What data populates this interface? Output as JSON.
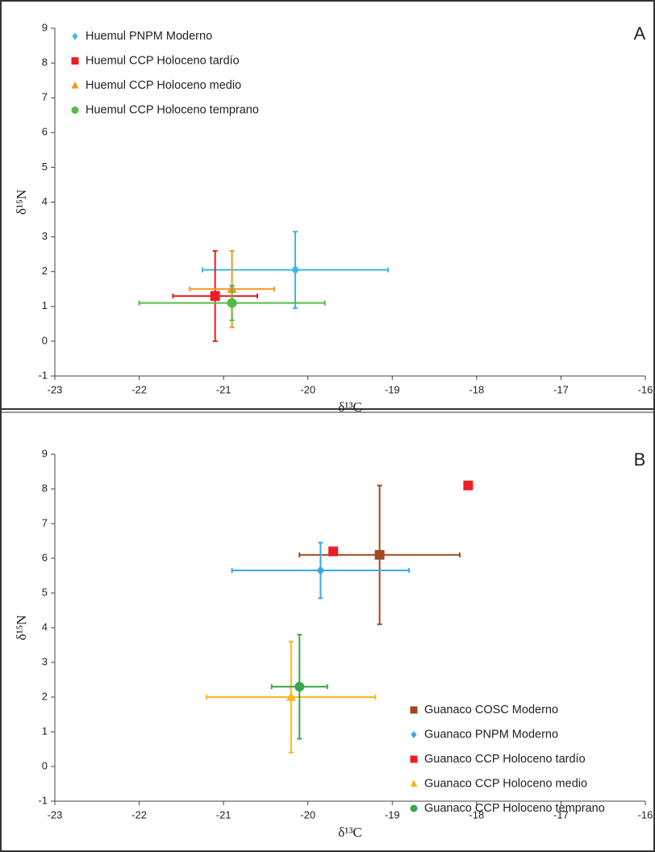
{
  "chart_data": [
    {
      "type": "scatter",
      "panel_label": "A",
      "xlabel": "δ¹³C",
      "ylabel": "δ¹⁵N",
      "xlim": [
        -23,
        -16
      ],
      "xticks": [
        -23,
        -22,
        -21,
        -20,
        -19,
        -18,
        -17,
        -16
      ],
      "ylim": [
        -1,
        9
      ],
      "yticks": [
        -1,
        0,
        1,
        2,
        3,
        4,
        5,
        6,
        7,
        8,
        9
      ],
      "legend": "upper left",
      "series": [
        {
          "name": "Huemul PNPM Moderno",
          "color": "#3cb8e6",
          "marker": "diamond",
          "x": [
            -20.15
          ],
          "values": [
            2.05
          ],
          "xerr": [
            1.1
          ],
          "yerr": [
            1.1
          ]
        },
        {
          "name": "Huemul CCP Holoceno tardío",
          "color": "#ee1c24",
          "marker": "square",
          "x": [
            -21.1
          ],
          "values": [
            1.3
          ],
          "xerr": [
            0.5
          ],
          "yerr": [
            1.3
          ]
        },
        {
          "name": "Huemul CCP Holoceno medio",
          "color": "#f7941d",
          "marker": "triangle",
          "x": [
            -20.9
          ],
          "values": [
            1.5
          ],
          "xerr": [
            0.5
          ],
          "yerr": [
            1.1
          ]
        },
        {
          "name": "Huemul CCP Holoceno temprano",
          "color": "#57b947",
          "marker": "circle",
          "x": [
            -20.9
          ],
          "values": [
            1.1
          ],
          "xerr": [
            1.1
          ],
          "yerr": [
            0.5
          ]
        }
      ]
    },
    {
      "type": "scatter",
      "panel_label": "B",
      "xlabel": "δ¹³C",
      "ylabel": "δ¹⁵N",
      "xlim": [
        -23,
        -16
      ],
      "xticks": [
        -23,
        -22,
        -21,
        -20,
        -19,
        -18,
        -17,
        -16
      ],
      "ylim": [
        -1,
        9
      ],
      "yticks": [
        -1,
        0,
        1,
        2,
        3,
        4,
        5,
        6,
        7,
        8,
        9
      ],
      "legend": "lower right",
      "series": [
        {
          "name": "Guanaco COSC Moderno",
          "color": "#9c4a1e",
          "marker": "square",
          "x": [
            -19.15
          ],
          "values": [
            6.1
          ],
          "xerr": [
            0.95
          ],
          "yerr": [
            2.0
          ]
        },
        {
          "name": "Guanaco PNPM Moderno",
          "color": "#3aa8ec",
          "marker": "diamond",
          "x": [
            -19.85
          ],
          "values": [
            5.65
          ],
          "xerr": [
            1.05
          ],
          "yerr": [
            0.8
          ]
        },
        {
          "name": "Guanaco CCP Holoceno tardío",
          "color": "#ee1c24",
          "marker": "square",
          "x": [
            -19.7,
            -18.1
          ],
          "values": [
            6.2,
            8.1
          ]
        },
        {
          "name": "Guanaco CCP Holoceno medio",
          "color": "#fbb61a",
          "marker": "triangle",
          "x": [
            -20.2
          ],
          "values": [
            2.0
          ],
          "xerr": [
            1.0
          ],
          "yerr": [
            1.6
          ]
        },
        {
          "name": "Guanaco CCP Holoceno temprano",
          "color": "#38a84a",
          "marker": "circle",
          "x": [
            -20.1
          ],
          "values": [
            2.3
          ],
          "xerr": [
            0.33
          ],
          "yerr": [
            1.5
          ]
        }
      ]
    }
  ]
}
